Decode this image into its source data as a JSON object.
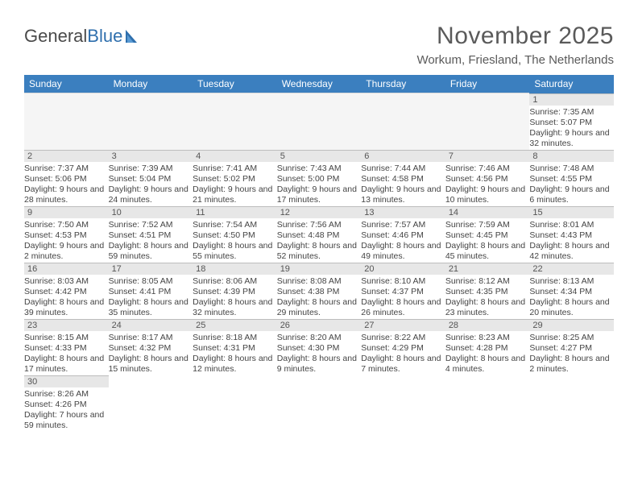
{
  "logo": {
    "text1": "General",
    "text2": "Blue"
  },
  "title": "November 2025",
  "location": "Workum, Friesland, The Netherlands",
  "colors": {
    "header_bg": "#3b7fbf",
    "header_text": "#ffffff",
    "daynum_bg": "#e7e7e7",
    "week_sep": "#2f6fad",
    "text": "#444444",
    "title_color": "#5a5a5a"
  },
  "weekdays": [
    "Sunday",
    "Monday",
    "Tuesday",
    "Wednesday",
    "Thursday",
    "Friday",
    "Saturday"
  ],
  "weeks": [
    [
      null,
      null,
      null,
      null,
      null,
      null,
      {
        "n": "1",
        "sr": "7:35 AM",
        "ss": "5:07 PM",
        "dl": "9 hours and 32 minutes."
      }
    ],
    [
      {
        "n": "2",
        "sr": "7:37 AM",
        "ss": "5:06 PM",
        "dl": "9 hours and 28 minutes."
      },
      {
        "n": "3",
        "sr": "7:39 AM",
        "ss": "5:04 PM",
        "dl": "9 hours and 24 minutes."
      },
      {
        "n": "4",
        "sr": "7:41 AM",
        "ss": "5:02 PM",
        "dl": "9 hours and 21 minutes."
      },
      {
        "n": "5",
        "sr": "7:43 AM",
        "ss": "5:00 PM",
        "dl": "9 hours and 17 minutes."
      },
      {
        "n": "6",
        "sr": "7:44 AM",
        "ss": "4:58 PM",
        "dl": "9 hours and 13 minutes."
      },
      {
        "n": "7",
        "sr": "7:46 AM",
        "ss": "4:56 PM",
        "dl": "9 hours and 10 minutes."
      },
      {
        "n": "8",
        "sr": "7:48 AM",
        "ss": "4:55 PM",
        "dl": "9 hours and 6 minutes."
      }
    ],
    [
      {
        "n": "9",
        "sr": "7:50 AM",
        "ss": "4:53 PM",
        "dl": "9 hours and 2 minutes."
      },
      {
        "n": "10",
        "sr": "7:52 AM",
        "ss": "4:51 PM",
        "dl": "8 hours and 59 minutes."
      },
      {
        "n": "11",
        "sr": "7:54 AM",
        "ss": "4:50 PM",
        "dl": "8 hours and 55 minutes."
      },
      {
        "n": "12",
        "sr": "7:56 AM",
        "ss": "4:48 PM",
        "dl": "8 hours and 52 minutes."
      },
      {
        "n": "13",
        "sr": "7:57 AM",
        "ss": "4:46 PM",
        "dl": "8 hours and 49 minutes."
      },
      {
        "n": "14",
        "sr": "7:59 AM",
        "ss": "4:45 PM",
        "dl": "8 hours and 45 minutes."
      },
      {
        "n": "15",
        "sr": "8:01 AM",
        "ss": "4:43 PM",
        "dl": "8 hours and 42 minutes."
      }
    ],
    [
      {
        "n": "16",
        "sr": "8:03 AM",
        "ss": "4:42 PM",
        "dl": "8 hours and 39 minutes."
      },
      {
        "n": "17",
        "sr": "8:05 AM",
        "ss": "4:41 PM",
        "dl": "8 hours and 35 minutes."
      },
      {
        "n": "18",
        "sr": "8:06 AM",
        "ss": "4:39 PM",
        "dl": "8 hours and 32 minutes."
      },
      {
        "n": "19",
        "sr": "8:08 AM",
        "ss": "4:38 PM",
        "dl": "8 hours and 29 minutes."
      },
      {
        "n": "20",
        "sr": "8:10 AM",
        "ss": "4:37 PM",
        "dl": "8 hours and 26 minutes."
      },
      {
        "n": "21",
        "sr": "8:12 AM",
        "ss": "4:35 PM",
        "dl": "8 hours and 23 minutes."
      },
      {
        "n": "22",
        "sr": "8:13 AM",
        "ss": "4:34 PM",
        "dl": "8 hours and 20 minutes."
      }
    ],
    [
      {
        "n": "23",
        "sr": "8:15 AM",
        "ss": "4:33 PM",
        "dl": "8 hours and 17 minutes."
      },
      {
        "n": "24",
        "sr": "8:17 AM",
        "ss": "4:32 PM",
        "dl": "8 hours and 15 minutes."
      },
      {
        "n": "25",
        "sr": "8:18 AM",
        "ss": "4:31 PM",
        "dl": "8 hours and 12 minutes."
      },
      {
        "n": "26",
        "sr": "8:20 AM",
        "ss": "4:30 PM",
        "dl": "8 hours and 9 minutes."
      },
      {
        "n": "27",
        "sr": "8:22 AM",
        "ss": "4:29 PM",
        "dl": "8 hours and 7 minutes."
      },
      {
        "n": "28",
        "sr": "8:23 AM",
        "ss": "4:28 PM",
        "dl": "8 hours and 4 minutes."
      },
      {
        "n": "29",
        "sr": "8:25 AM",
        "ss": "4:27 PM",
        "dl": "8 hours and 2 minutes."
      }
    ],
    [
      {
        "n": "30",
        "sr": "8:26 AM",
        "ss": "4:26 PM",
        "dl": "7 hours and 59 minutes."
      },
      null,
      null,
      null,
      null,
      null,
      null
    ]
  ],
  "labels": {
    "sunrise": "Sunrise:",
    "sunset": "Sunset:",
    "daylight": "Daylight:"
  }
}
